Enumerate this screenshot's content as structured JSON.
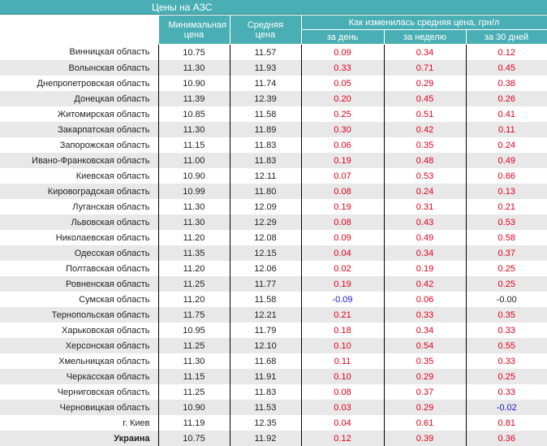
{
  "title": "Цены на АЗС",
  "header": {
    "min_price": "Минимальная цена",
    "avg_price": "Средняя цена",
    "change_group": "Как изменилась средняя цена, грн/л",
    "per_day": "за день",
    "per_week": "за неделю",
    "per_30_days": "за 30 дней"
  },
  "colors": {
    "header_bg": "#4aafb5",
    "positive": "#e3001b",
    "negative": "#1a1ad0",
    "stripe": "#e8e8e8"
  },
  "rows": [
    {
      "region": "Винницкая область",
      "min": "10.75",
      "avg": "11.57",
      "day": "0.09",
      "week": "0.34",
      "month": "0.12"
    },
    {
      "region": "Волынская область",
      "min": "11.30",
      "avg": "11.93",
      "day": "0.33",
      "week": "0.71",
      "month": "0.45"
    },
    {
      "region": "Днепропетровская область",
      "min": "10.90",
      "avg": "11.74",
      "day": "0.05",
      "week": "0.29",
      "month": "0.38"
    },
    {
      "region": "Донецкая область",
      "min": "11.39",
      "avg": "12.39",
      "day": "0.20",
      "week": "0.45",
      "month": "0.26"
    },
    {
      "region": "Житомирская область",
      "min": "10.85",
      "avg": "11.58",
      "day": "0.25",
      "week": "0.51",
      "month": "0.41"
    },
    {
      "region": "Закарпатская область",
      "min": "11.30",
      "avg": "11.89",
      "day": "0.30",
      "week": "0.42",
      "month": "0.11"
    },
    {
      "region": "Запорожская область",
      "min": "11.15",
      "avg": "11.83",
      "day": "0.06",
      "week": "0.35",
      "month": "0.24"
    },
    {
      "region": "Ивано-Франковская область",
      "min": "11.00",
      "avg": "11.83",
      "day": "0.19",
      "week": "0.48",
      "month": "0.49"
    },
    {
      "region": "Киевская область",
      "min": "10.90",
      "avg": "12.11",
      "day": "0.07",
      "week": "0.53",
      "month": "0.66"
    },
    {
      "region": "Кировоградская область",
      "min": "10.99",
      "avg": "11.80",
      "day": "0.08",
      "week": "0.24",
      "month": "0.13"
    },
    {
      "region": "Луганская область",
      "min": "11.30",
      "avg": "12.09",
      "day": "0.19",
      "week": "0.31",
      "month": "0.21"
    },
    {
      "region": "Львовская область",
      "min": "11.30",
      "avg": "12.29",
      "day": "0.08",
      "week": "0.43",
      "month": "0.53"
    },
    {
      "region": "Николаевская область",
      "min": "11.20",
      "avg": "12.08",
      "day": "0.09",
      "week": "0.49",
      "month": "0.58"
    },
    {
      "region": "Одесская область",
      "min": "11.35",
      "avg": "12.15",
      "day": "0.04",
      "week": "0.34",
      "month": "0.37"
    },
    {
      "region": "Полтавская область",
      "min": "11.20",
      "avg": "12.06",
      "day": "0.02",
      "week": "0.19",
      "month": "0.25"
    },
    {
      "region": "Ровненская область",
      "min": "11.25",
      "avg": "11.77",
      "day": "0.19",
      "week": "0.42",
      "month": "0.25"
    },
    {
      "region": "Сумская область",
      "min": "11.20",
      "avg": "11.58",
      "day": "-0.09",
      "week": "0.06",
      "month": "-0.00"
    },
    {
      "region": "Тернопольская область",
      "min": "11.75",
      "avg": "12.21",
      "day": "0.21",
      "week": "0.33",
      "month": "0.35"
    },
    {
      "region": "Харьковская область",
      "min": "10.95",
      "avg": "11.79",
      "day": "0.18",
      "week": "0.34",
      "month": "0.33"
    },
    {
      "region": "Херсонская область",
      "min": "11.25",
      "avg": "12.10",
      "day": "0.10",
      "week": "0.54",
      "month": "0.55"
    },
    {
      "region": "Хмельницкая область",
      "min": "11.30",
      "avg": "11.68",
      "day": "0.11",
      "week": "0.35",
      "month": "0.33"
    },
    {
      "region": "Черкасская область",
      "min": "11.15",
      "avg": "11.91",
      "day": "0.10",
      "week": "0.29",
      "month": "0.25"
    },
    {
      "region": "Черниговская область",
      "min": "11.25",
      "avg": "11.83",
      "day": "0.08",
      "week": "0.37",
      "month": "0.33"
    },
    {
      "region": "Черновицкая область",
      "min": "10.90",
      "avg": "11.53",
      "day": "0.03",
      "week": "0.29",
      "month": "-0.02"
    },
    {
      "region": "г. Киев",
      "min": "11.19",
      "avg": "12.35",
      "day": "0.04",
      "week": "0.61",
      "month": "0.81"
    },
    {
      "region": "Украина",
      "min": "10.75",
      "avg": "11.92",
      "day": "0.12",
      "week": "0.39",
      "month": "0.36",
      "total": true
    }
  ]
}
